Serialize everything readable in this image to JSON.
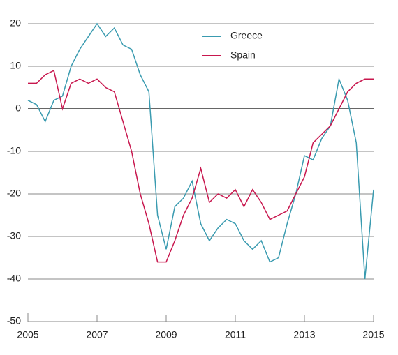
{
  "chart_data": {
    "type": "line",
    "x": [
      2005,
      2005.25,
      2005.5,
      2005.75,
      2006,
      2006.25,
      2006.5,
      2006.75,
      2007,
      2007.25,
      2007.5,
      2007.75,
      2008,
      2008.25,
      2008.5,
      2008.75,
      2009,
      2009.25,
      2009.5,
      2009.75,
      2010,
      2010.25,
      2010.5,
      2010.75,
      2011,
      2011.25,
      2011.5,
      2011.75,
      2012,
      2012.25,
      2012.5,
      2012.75,
      2013,
      2013.25,
      2013.5,
      2013.75,
      2014,
      2014.25,
      2014.5,
      2014.75,
      2015
    ],
    "series": [
      {
        "name": "Greece",
        "color": "#3a9bb0",
        "values": [
          2,
          1,
          -3,
          2,
          3,
          10,
          14,
          17,
          20,
          17,
          19,
          15,
          14,
          8,
          4,
          -25,
          -33,
          -23,
          -21,
          -17,
          -27,
          -31,
          -28,
          -26,
          -27,
          -31,
          -33,
          -31,
          -36,
          -35,
          -27,
          -20,
          -11,
          -12,
          -7,
          -4,
          7,
          2,
          -8,
          -40,
          -19
        ]
      },
      {
        "name": "Spain",
        "color": "#c8174e",
        "values": [
          6,
          6,
          8,
          9,
          0,
          6,
          7,
          6,
          7,
          5,
          4,
          -3,
          -10,
          -20,
          -27,
          -36,
          -36,
          -31,
          -25,
          -21,
          -14,
          -22,
          -20,
          -21,
          -19,
          -23,
          -19,
          -22,
          -26,
          -25,
          -24,
          -20,
          -16,
          -8,
          -6,
          -4,
          0,
          4,
          6,
          7,
          7
        ]
      }
    ],
    "xlim": [
      2005,
      2015
    ],
    "xticks": [
      2005,
      2007,
      2009,
      2011,
      2013,
      2015
    ],
    "ylim": [
      -50,
      20
    ],
    "yticks": [
      -50,
      -40,
      -30,
      -20,
      -10,
      0,
      10,
      20
    ],
    "grid": true
  }
}
